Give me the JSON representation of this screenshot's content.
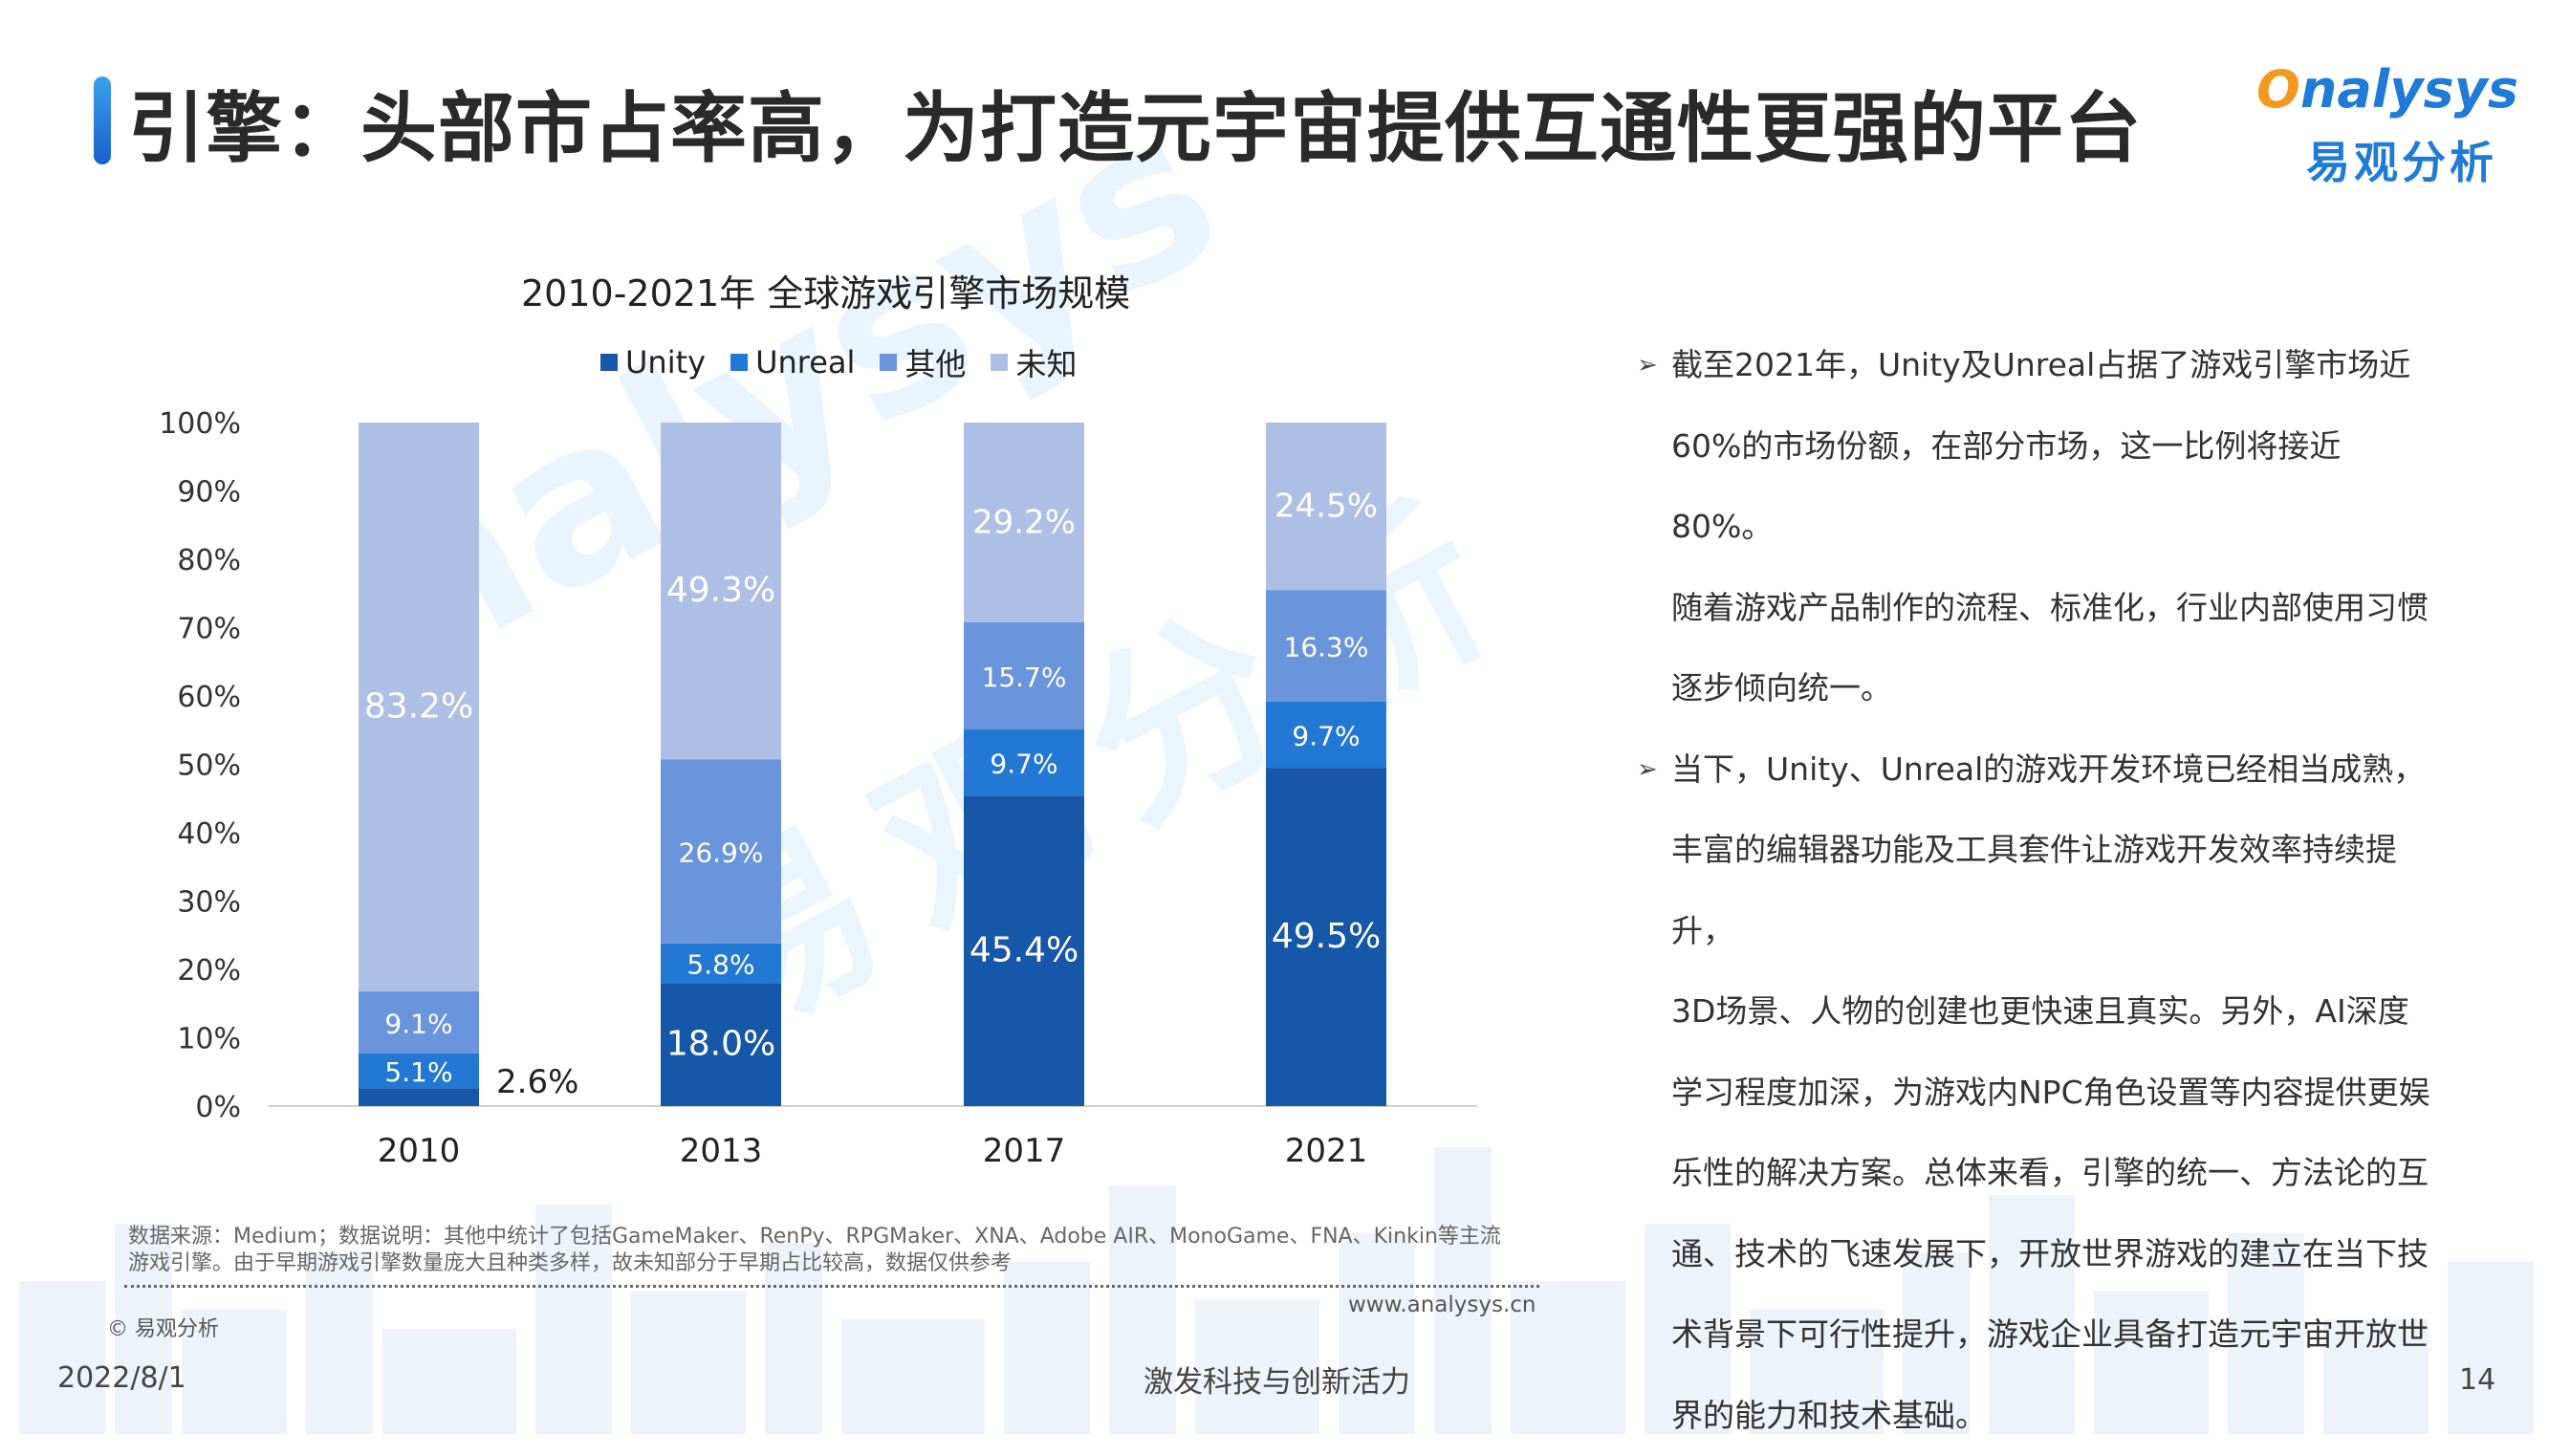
{
  "header": {
    "title": "引擎：头部市占率高，为打造元宇宙提供互通性更强的平台"
  },
  "logo": {
    "text_en_o": "O",
    "text_en_rest": "nalysys",
    "text_cn": "易观分析"
  },
  "watermark": {
    "text_en": "nalysys",
    "text_cn": "易观分析"
  },
  "colors": {
    "unity": "#1757a8",
    "unreal": "#2278d2",
    "other": "#6a95dc",
    "unknown": "#aebfe6",
    "accent": "#1f7bd6"
  },
  "chart_data": {
    "type": "bar",
    "stacked": true,
    "title": "2010-2021年 全球游戏引擎市场规模",
    "categories": [
      "2010",
      "2013",
      "2017",
      "2021"
    ],
    "series": [
      {
        "name": "Unity",
        "values": [
          2.6,
          18.0,
          45.4,
          49.5
        ],
        "labels": [
          "2.6%",
          "18.0%",
          "45.4%",
          "49.5%"
        ]
      },
      {
        "name": "Unreal",
        "values": [
          5.1,
          5.8,
          9.7,
          9.7
        ],
        "labels": [
          "5.1%",
          "5.8%",
          "9.7%",
          "9.7%"
        ]
      },
      {
        "name": "其他",
        "values": [
          9.1,
          26.9,
          15.7,
          16.3
        ],
        "labels": [
          "9.1%",
          "26.9%",
          "15.7%",
          "16.3%"
        ]
      },
      {
        "name": "未知",
        "values": [
          83.2,
          49.3,
          29.2,
          24.5
        ],
        "labels": [
          "83.2%",
          "49.3%",
          "29.2%",
          "24.5%"
        ]
      }
    ],
    "y_ticks": [
      "0%",
      "10%",
      "20%",
      "30%",
      "40%",
      "50%",
      "60%",
      "70%",
      "80%",
      "90%",
      "100%"
    ],
    "ylim": [
      0,
      100
    ],
    "legend_position": "top",
    "grid": false
  },
  "bullets": [
    {
      "lines": [
        "截至2021年，Unity及Unreal占据了游戏引擎市场近",
        "60%的市场份额，在部分市场，这一比例将接近80%。",
        "随着游戏产品制作的流程、标准化，行业内部使用习惯",
        "逐步倾向统一。"
      ]
    },
    {
      "lines": [
        "当下，Unity、Unreal的游戏开发环境已经相当成熟，",
        "丰富的编辑器功能及工具套件让游戏开发效率持续提升，",
        "3D场景、人物的创建也更快速且真实。另外，AI深度",
        "学习程度加深，为游戏内NPC角色设置等内容提供更娱",
        "乐性的解决方案。总体来看，引擎的统一、方法论的互",
        "通、技术的飞速发展下，开放世界游戏的建立在当下技",
        "术背景下可行性提升，游戏企业具备打造元宇宙开放世",
        "界的能力和技术基础。"
      ]
    }
  ],
  "bullet_glyph": "➢",
  "footer": {
    "source_line1": "数据来源：Medium；数据说明：其他中统计了包括GameMaker、RenPy、RPGMaker、XNA、Adobe AIR、MonoGame、FNA、Kinkin等主流",
    "source_line2": "游戏引擎。由于早期游戏引擎数量庞大且种类多样，故未知部分于早期占比较高，数据仅供参考",
    "copyright": "© 易观分析",
    "website": "www.analysys.cn",
    "date": "2022/8/1",
    "slogan": "激发科技与创新活力",
    "page_number": "14"
  }
}
